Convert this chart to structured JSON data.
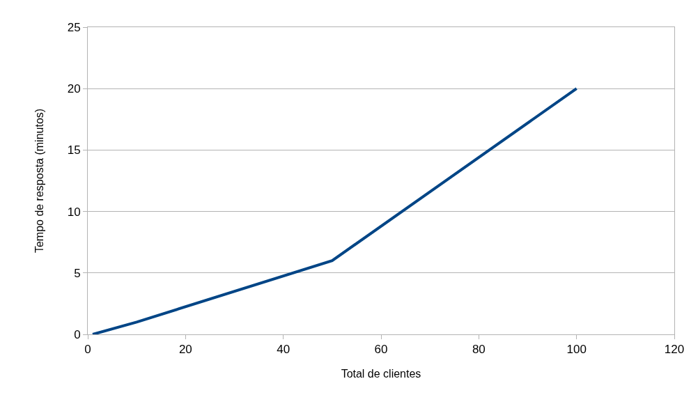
{
  "chart_data": {
    "type": "line",
    "xlabel": "Total de clientes",
    "ylabel": "Tempo de resposta (minutos)",
    "x": [
      1,
      10,
      50,
      100
    ],
    "series": [
      {
        "color": "#004586",
        "values": [
          0,
          1,
          6,
          20
        ]
      }
    ],
    "xlim": [
      0,
      120
    ],
    "xticks": [
      0,
      20,
      40,
      60,
      80,
      100,
      120
    ],
    "ylim": [
      0,
      25
    ],
    "yticks": [
      0,
      5,
      10,
      15,
      20,
      25
    ],
    "grid": "y",
    "marker": "none",
    "line_style": "solid"
  }
}
